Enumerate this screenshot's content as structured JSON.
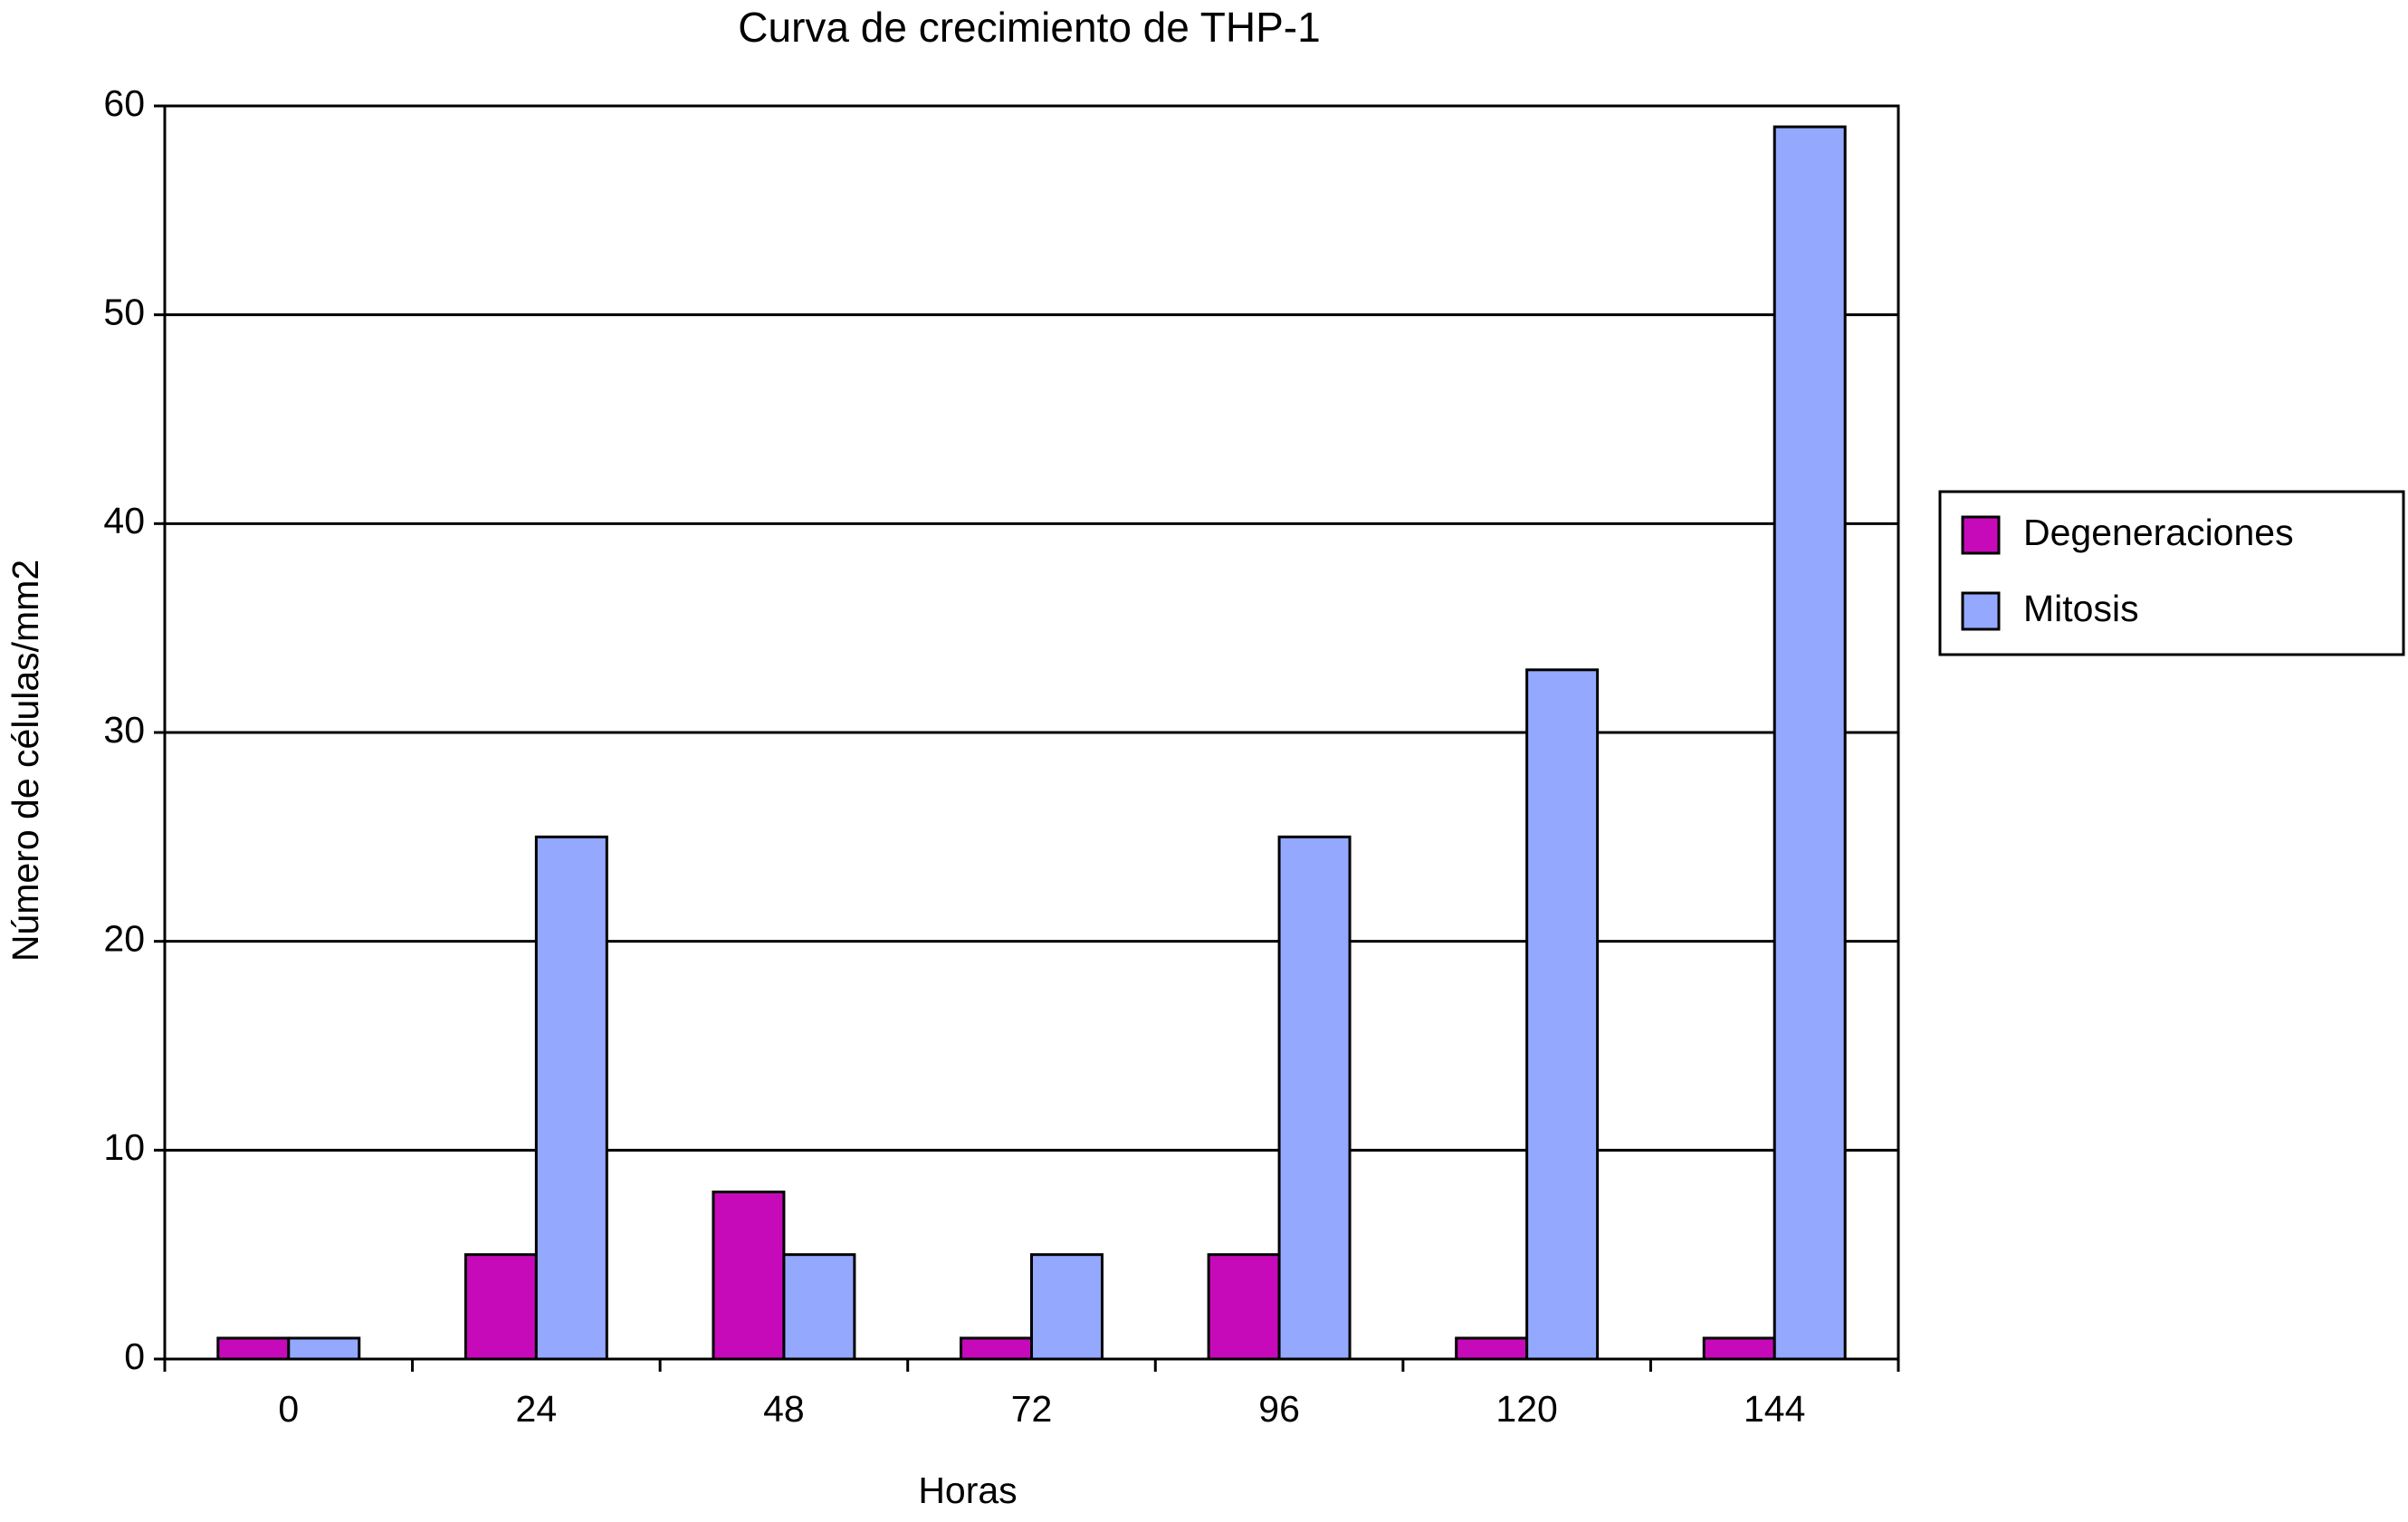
{
  "chart_data": {
    "type": "bar",
    "title": "Curva de crecimiento de THP-1",
    "x_label": "Horas",
    "y_label": "Número de células/mm2",
    "categories": [
      "0",
      "24",
      "48",
      "72",
      "96",
      "120",
      "144"
    ],
    "series": [
      {
        "name": "Degeneraciones",
        "color": "#c70ab9",
        "values": [
          1,
          5,
          8,
          1,
          5,
          1,
          1
        ]
      },
      {
        "name": "Mitosis",
        "color": "#94a8fd",
        "values": [
          1,
          25,
          5,
          5,
          25,
          33,
          59
        ]
      }
    ],
    "ylim": [
      0,
      60
    ],
    "yticks": [
      0,
      10,
      20,
      30,
      40,
      50,
      60
    ],
    "grid": true,
    "legend": "right"
  }
}
